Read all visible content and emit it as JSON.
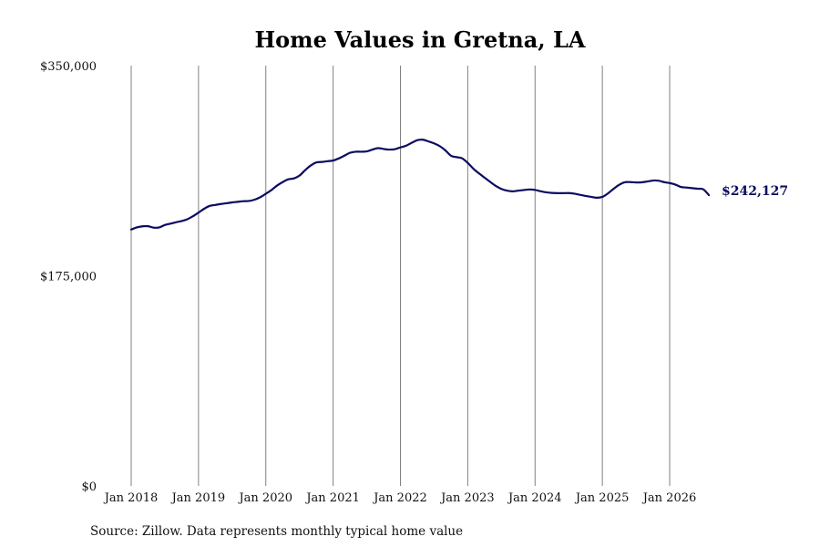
{
  "chart_data": {
    "type": "line",
    "title": "Home Values in Gretna, LA",
    "xlabel": "",
    "ylabel": "",
    "ylim": [
      0,
      350000
    ],
    "xlim": [
      "2018-01",
      "2026-08"
    ],
    "x_ticks": [
      "Jan 2018",
      "Jan 2019",
      "Jan 2020",
      "Jan 2021",
      "Jan 2022",
      "Jan 2023",
      "Jan 2024",
      "Jan 2025",
      "Jan 2026"
    ],
    "y_ticks": [
      "$0",
      "$175,000",
      "$350,000"
    ],
    "grid": {
      "vertical": true,
      "horizontal": false
    },
    "legend": "none",
    "end_label": "$242,127",
    "series": [
      {
        "x": [
          "2018-01",
          "2018-02",
          "2018-03",
          "2018-04",
          "2018-05",
          "2018-06",
          "2018-07",
          "2018-08",
          "2018-09",
          "2018-10",
          "2018-11",
          "2018-12",
          "2019-01",
          "2019-02",
          "2019-03",
          "2019-04",
          "2019-05",
          "2019-06",
          "2019-07",
          "2019-08",
          "2019-09",
          "2019-10",
          "2019-11",
          "2019-12",
          "2020-01",
          "2020-02",
          "2020-03",
          "2020-04",
          "2020-05",
          "2020-06",
          "2020-07",
          "2020-08",
          "2020-09",
          "2020-10",
          "2020-11",
          "2020-12",
          "2021-01",
          "2021-02",
          "2021-03",
          "2021-04",
          "2021-05",
          "2021-06",
          "2021-07",
          "2021-08",
          "2021-09",
          "2021-10",
          "2021-11",
          "2021-12",
          "2022-01",
          "2022-02",
          "2022-03",
          "2022-04",
          "2022-05",
          "2022-06",
          "2022-07",
          "2022-08",
          "2022-09",
          "2022-10",
          "2022-11",
          "2022-12",
          "2023-01",
          "2023-02",
          "2023-03",
          "2023-04",
          "2023-05",
          "2023-06",
          "2023-07",
          "2023-08",
          "2023-09",
          "2023-10",
          "2023-11",
          "2023-12",
          "2024-01",
          "2024-02",
          "2024-03",
          "2024-04",
          "2024-05",
          "2024-06",
          "2024-07",
          "2024-08",
          "2024-09",
          "2024-10",
          "2024-11",
          "2024-12",
          "2025-01",
          "2025-02",
          "2025-03",
          "2025-04",
          "2025-05",
          "2025-06",
          "2025-07",
          "2025-08",
          "2025-09",
          "2025-10",
          "2025-11",
          "2025-12",
          "2026-01",
          "2026-02",
          "2026-03",
          "2026-04",
          "2026-05",
          "2026-06",
          "2026-07",
          "2026-08"
        ],
        "values": [
          213500,
          215300,
          216200,
          216300,
          215100,
          215300,
          217300,
          218400,
          219600,
          220600,
          222100,
          224600,
          227600,
          230800,
          233200,
          234000,
          234800,
          235400,
          236100,
          236600,
          237100,
          237300,
          238400,
          240400,
          243300,
          246400,
          250100,
          253000,
          255300,
          256100,
          258400,
          262900,
          266800,
          269400,
          269800,
          270400,
          271000,
          272700,
          275000,
          277400,
          278300,
          278300,
          278600,
          280100,
          281300,
          280600,
          280100,
          280400,
          281900,
          283300,
          285700,
          287900,
          288300,
          286900,
          285300,
          283000,
          279500,
          275000,
          273800,
          272800,
          269000,
          264200,
          260300,
          256700,
          253200,
          249800,
          247300,
          245900,
          245300,
          245900,
          246400,
          246900,
          246500,
          245400,
          244500,
          244000,
          243800,
          243800,
          243900,
          243400,
          242400,
          241500,
          240700,
          240000,
          240700,
          243600,
          247400,
          250800,
          252900,
          253000,
          252700,
          252800,
          253500,
          254300,
          254200,
          253000,
          252200,
          251000,
          249000,
          248500,
          248000,
          247500,
          247000,
          242127
        ]
      }
    ]
  },
  "source_note": "Source: Zillow. Data represents monthly typical home value"
}
